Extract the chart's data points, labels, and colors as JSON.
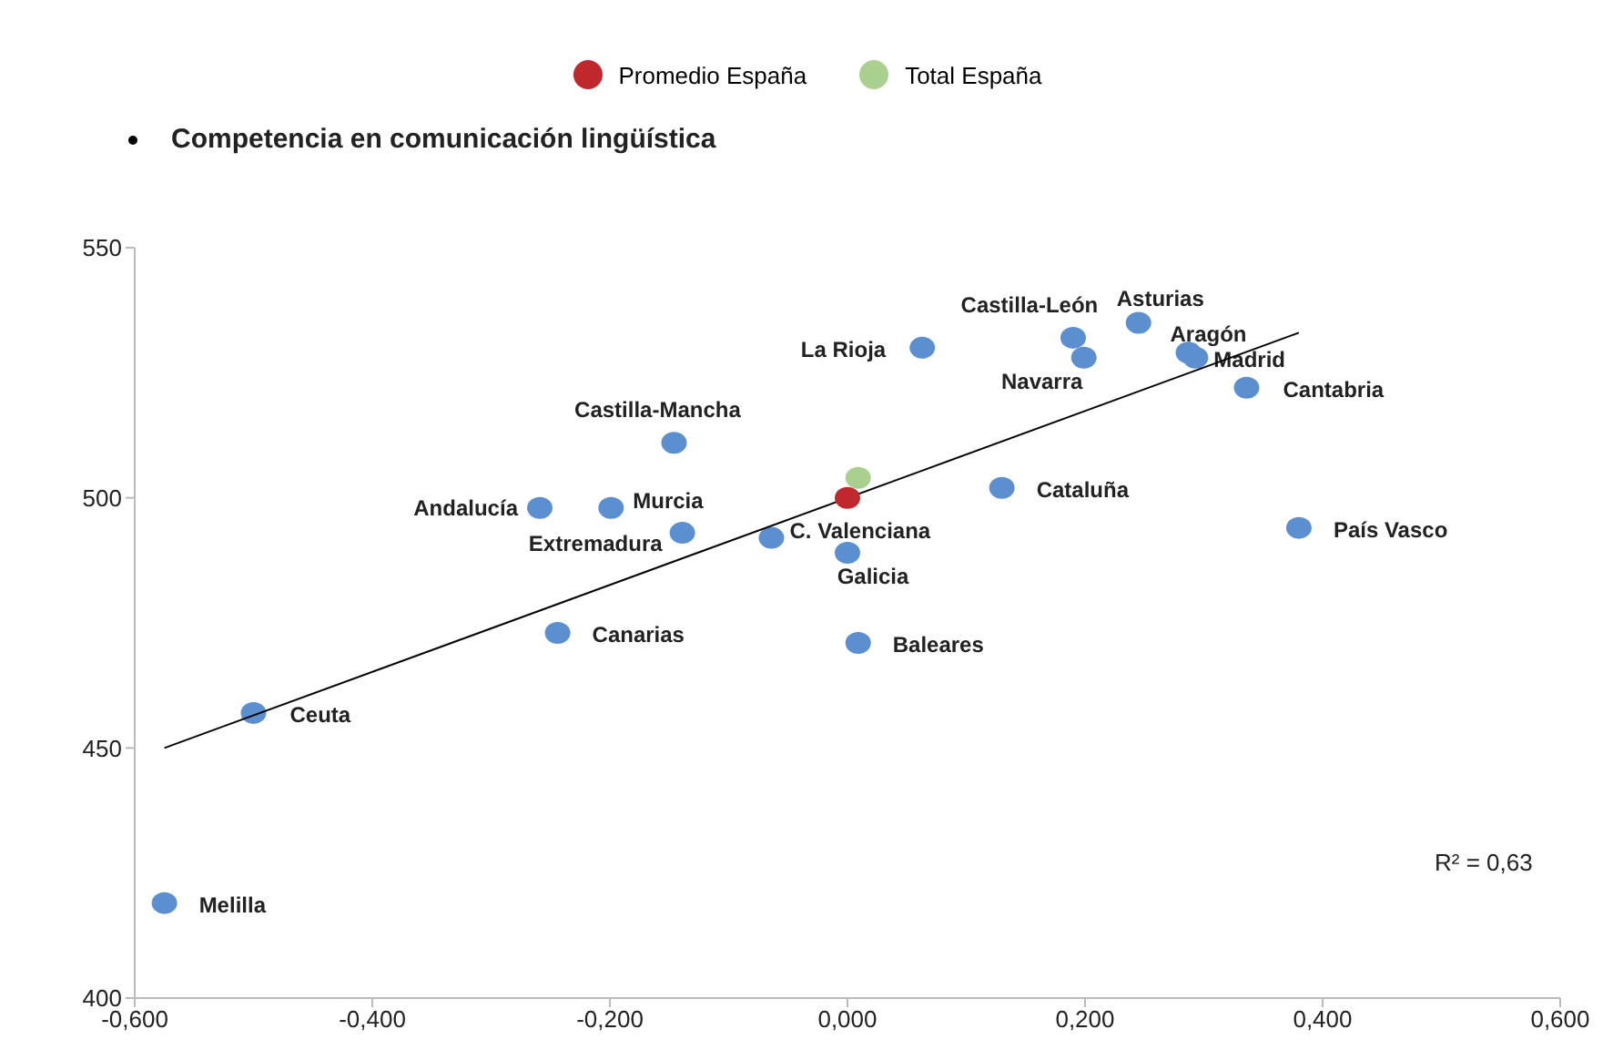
{
  "chart_data": {
    "type": "scatter",
    "title": "Competencia en comunicación lingüística",
    "xlim": [
      -0.6,
      0.6
    ],
    "xticks": [
      {
        "value": -0.6,
        "label": "-0,600"
      },
      {
        "value": -0.4,
        "label": "-0,400"
      },
      {
        "value": -0.2,
        "label": "-0,200"
      },
      {
        "value": 0,
        "label": "0,000"
      },
      {
        "value": 0.2,
        "label": "0,200"
      },
      {
        "value": 0.4,
        "label": "0,400"
      },
      {
        "value": 0.6,
        "label": "0,600"
      }
    ],
    "ylim": [
      400,
      550
    ],
    "yticks": [
      400,
      450,
      500,
      550
    ],
    "grid": false,
    "legend": "top",
    "marker": "circle",
    "annotations": [
      "R² = 0,63"
    ],
    "series": [
      {
        "color": "#5b8fd0",
        "x": [
          -0.259,
          0.287,
          0.245,
          0.009,
          -0.244,
          0.336,
          0.19,
          -0.146,
          0.13,
          -0.064,
          -0.139,
          0.0,
          0.063,
          0.293,
          -0.575,
          -0.199,
          0.199,
          0.38,
          -0.5
        ],
        "values": [
          498,
          529,
          535,
          471,
          473,
          522,
          532,
          511,
          502,
          492,
          493,
          489,
          530,
          528,
          419,
          498,
          528,
          494,
          457
        ],
        "value_labels": [
          "Andalucía",
          "Aragón",
          "Asturias",
          "Baleares",
          "Canarias",
          "Cantabria",
          "Castilla-León",
          "Castilla-Mancha",
          "Cataluña",
          "C. Valenciana",
          "Extremadura",
          "Galicia",
          "La Rioja",
          "Madrid",
          "Melilla",
          "Murcia",
          "Navarra",
          "País Vasco",
          "Ceuta"
        ]
      },
      {
        "type": "line",
        "marker": "none",
        "color": "#000000",
        "x": [
          -0.575,
          0.38
        ],
        "values": [
          450,
          533
        ]
      },
      {
        "name": "Promedio España",
        "color": "#c0282d",
        "x": [
          0.0
        ],
        "values": [
          500
        ]
      },
      {
        "name": "Total España",
        "color": "#a9d08e",
        "x": [
          0.009
        ],
        "values": [
          504
        ]
      }
    ]
  }
}
